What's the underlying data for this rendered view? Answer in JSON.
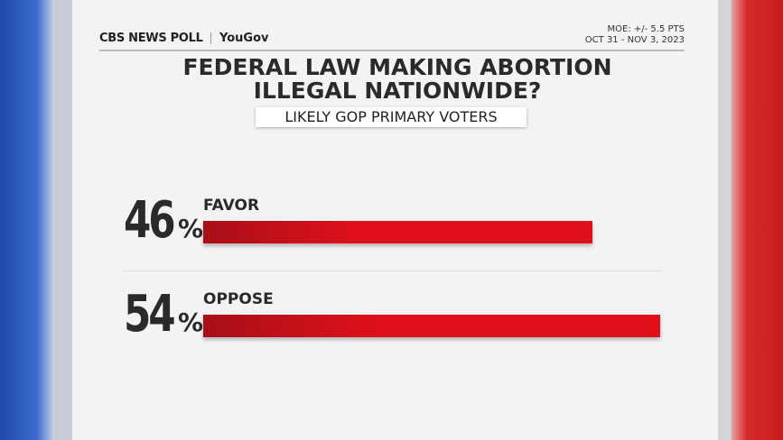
{
  "chart_data": {
    "type": "bar",
    "orientation": "horizontal",
    "brand": "CBS NEWS POLL",
    "partner": "YouGov",
    "moe": "MOE: +/- 5.5 PTS",
    "dates": "OCT 31 - NOV 3, 2023",
    "title": "FEDERAL LAW MAKING ABORTION ILLEGAL NATIONWIDE?",
    "subtitle": "LIKELY GOP PRIMARY VOTERS",
    "categories": [
      "FAVOR",
      "OPPOSE"
    ],
    "values": [
      46,
      54
    ],
    "value_labels": [
      "46%",
      "54%"
    ],
    "color": "#e0101a"
  }
}
